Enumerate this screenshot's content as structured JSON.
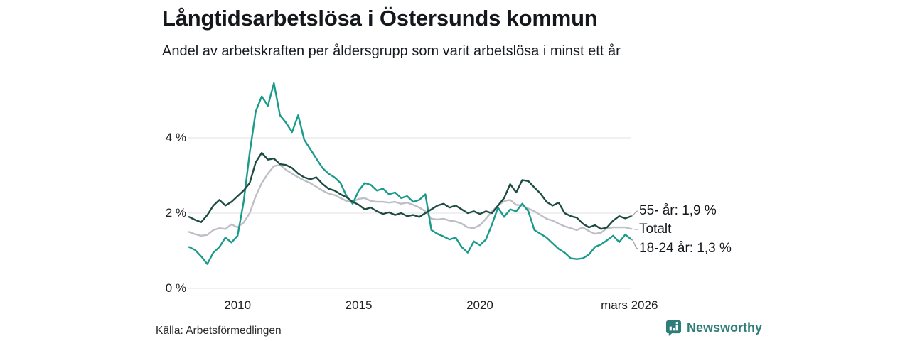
{
  "header": {
    "title": "Långtidsarbetslösa i Östersunds kommun",
    "subtitle": "Andel av arbetskraften per åldersgrupp som varit arbetslösa i minst ett år"
  },
  "footer": {
    "source": "Källa: Arbetsförmedlingen",
    "brand": "Newsworthy",
    "brand_color": "#2f7d78",
    "logo_icon": "bar-chart-speech-bubble-icon"
  },
  "colors": {
    "background": "#ffffff",
    "gridline": "#e7e7e7",
    "text": "#14171c",
    "connector": "#999999",
    "series_55": "#1e4b42",
    "series_totalt": "#bfbec6",
    "series_18_24": "#1a9a8b"
  },
  "chart_data": {
    "type": "line",
    "title": "Långtidsarbetslösa i Östersunds kommun",
    "subtitle": "Andel av arbetskraften per åldersgrupp som varit arbetslösa i minst ett år",
    "xlabel": "",
    "ylabel": "",
    "grid": true,
    "legend_position": "right-end-labels",
    "x_unit": "decimal-year",
    "y_unit": "percent",
    "x_start": 2008.0,
    "x_step": 0.25,
    "x_range": [
      2008.0,
      2026.25
    ],
    "ylim": [
      0,
      5.6
    ],
    "y_ticks": [
      {
        "value": 0,
        "label": "0 %"
      },
      {
        "value": 2,
        "label": "2 %"
      },
      {
        "value": 4,
        "label": "4 %"
      }
    ],
    "x_ticks": [
      {
        "value": 2010,
        "label": "2010"
      },
      {
        "value": 2015,
        "label": "2015"
      },
      {
        "value": 2020,
        "label": "2020"
      },
      {
        "value": 2026.17,
        "label": "mars 2026"
      }
    ],
    "series": [
      {
        "name": "55- år",
        "id": "55-ar",
        "color": "#1e4b42",
        "end_label": "55- år: 1,9 %",
        "end_value_label": "1,9 %",
        "values": [
          1.9,
          1.82,
          1.76,
          1.95,
          2.2,
          2.35,
          2.2,
          2.3,
          2.45,
          2.6,
          2.8,
          3.35,
          3.6,
          3.42,
          3.45,
          3.3,
          3.28,
          3.2,
          3.05,
          2.95,
          2.9,
          2.95,
          2.78,
          2.65,
          2.6,
          2.5,
          2.42,
          2.3,
          2.22,
          2.1,
          2.15,
          2.05,
          1.98,
          2.02,
          1.95,
          2.0,
          1.92,
          1.95,
          1.9,
          2.0,
          2.1,
          2.2,
          2.25,
          2.15,
          2.2,
          2.1,
          2.0,
          2.05,
          1.98,
          2.05,
          2.0,
          2.2,
          2.4,
          2.77,
          2.55,
          2.88,
          2.85,
          2.68,
          2.52,
          2.3,
          2.2,
          2.28,
          2.0,
          1.92,
          1.88,
          1.72,
          1.62,
          1.68,
          1.58,
          1.62,
          1.8,
          1.92,
          1.86,
          1.92
        ]
      },
      {
        "name": "Totalt",
        "id": "totalt",
        "color": "#bfbec6",
        "end_label": "Totalt",
        "end_value_label": "",
        "values": [
          1.5,
          1.44,
          1.4,
          1.42,
          1.55,
          1.6,
          1.58,
          1.7,
          1.62,
          1.75,
          2.0,
          2.45,
          2.8,
          3.05,
          3.25,
          3.28,
          3.15,
          3.05,
          2.95,
          2.87,
          2.8,
          2.7,
          2.6,
          2.52,
          2.48,
          2.4,
          2.32,
          2.3,
          2.38,
          2.4,
          2.32,
          2.3,
          2.3,
          2.28,
          2.3,
          2.25,
          2.28,
          2.22,
          2.15,
          2.05,
          1.85,
          1.83,
          1.85,
          1.8,
          1.78,
          1.72,
          1.62,
          1.6,
          1.68,
          1.85,
          2.05,
          2.2,
          2.32,
          2.35,
          2.22,
          2.2,
          2.12,
          2.05,
          1.95,
          1.85,
          1.8,
          1.72,
          1.65,
          1.6,
          1.55,
          1.62,
          1.52,
          1.45,
          1.48,
          1.6,
          1.62,
          1.62,
          1.62,
          1.58
        ]
      },
      {
        "name": "18-24 år",
        "id": "18-24-ar",
        "color": "#1a9a8b",
        "end_label": "18-24 år: 1,3 %",
        "end_value_label": "1,3 %",
        "values": [
          1.1,
          1.02,
          0.85,
          0.65,
          0.95,
          1.1,
          1.35,
          1.22,
          1.4,
          2.3,
          3.6,
          4.7,
          5.1,
          4.85,
          5.45,
          4.6,
          4.4,
          4.15,
          4.6,
          3.95,
          3.7,
          3.45,
          3.2,
          3.05,
          2.95,
          2.8,
          2.45,
          2.25,
          2.6,
          2.8,
          2.75,
          2.6,
          2.65,
          2.5,
          2.55,
          2.4,
          2.45,
          2.3,
          2.35,
          2.5,
          1.55,
          1.45,
          1.38,
          1.3,
          1.35,
          1.1,
          0.95,
          1.25,
          1.15,
          1.3,
          1.7,
          2.15,
          1.9,
          2.1,
          2.05,
          2.25,
          2.05,
          1.55,
          1.45,
          1.35,
          1.2,
          1.05,
          0.95,
          0.8,
          0.78,
          0.8,
          0.9,
          1.1,
          1.17,
          1.28,
          1.4,
          1.23,
          1.43,
          1.3
        ]
      }
    ]
  }
}
